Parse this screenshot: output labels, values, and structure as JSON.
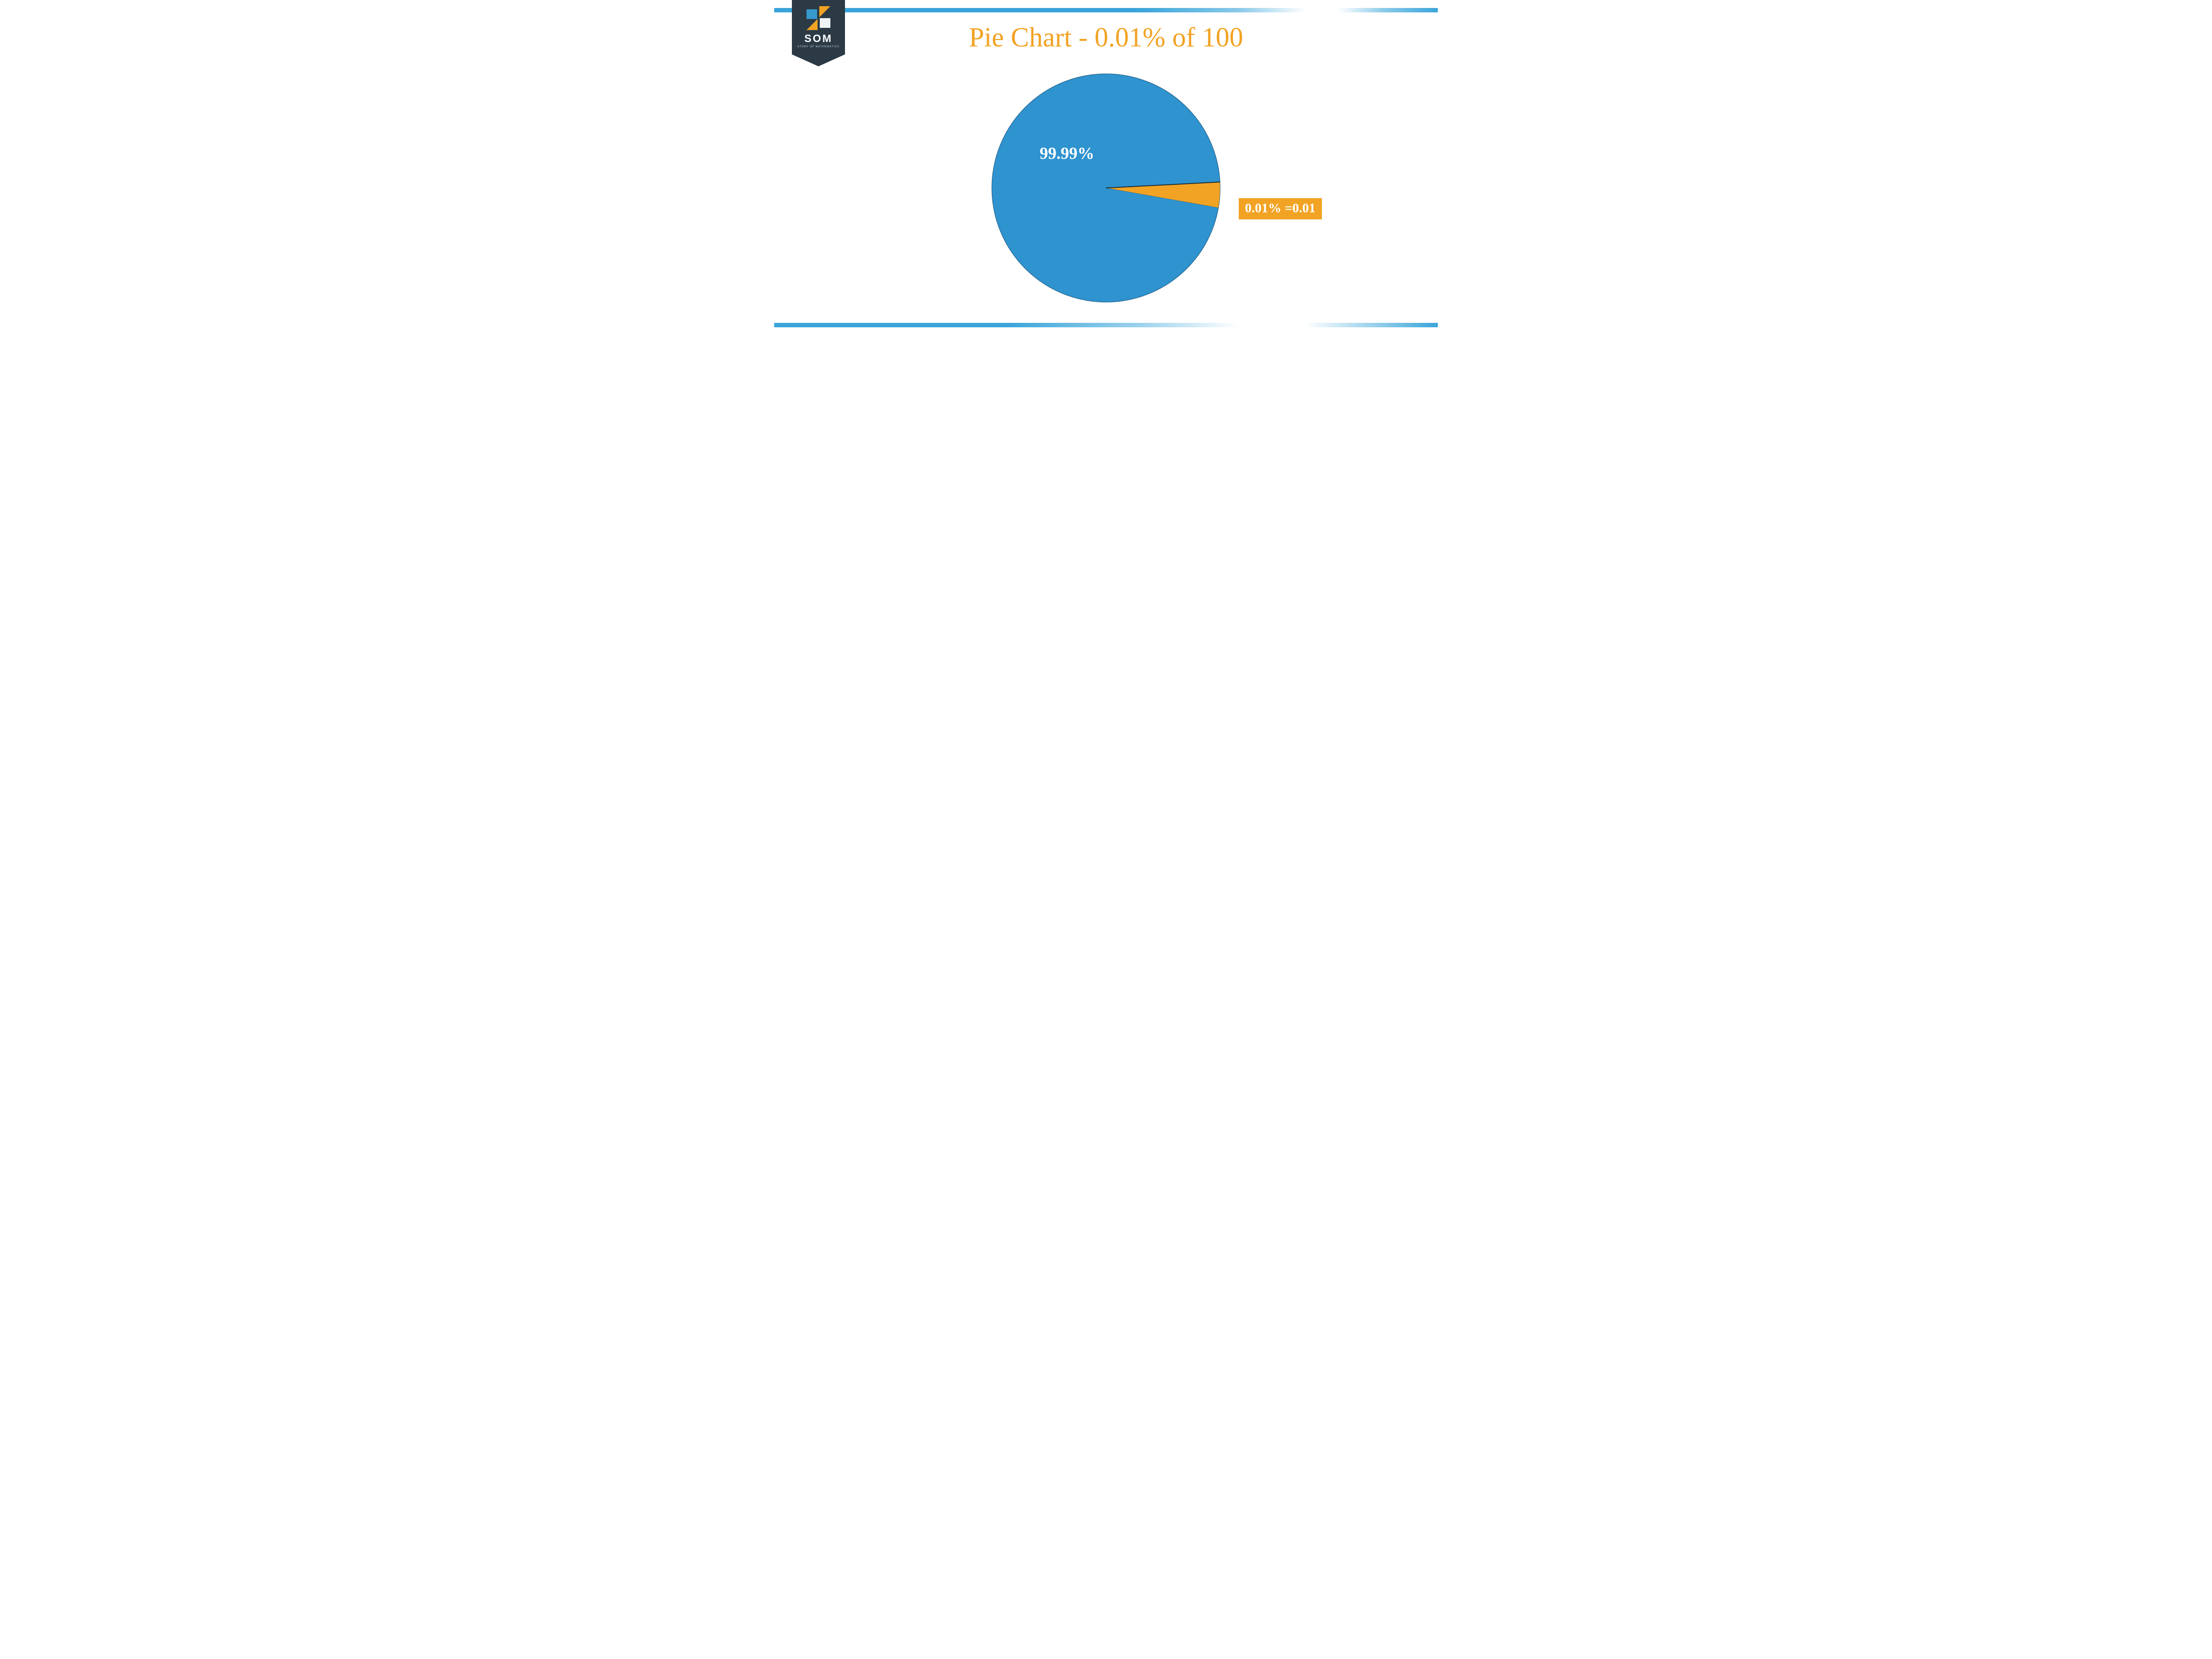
{
  "logo": {
    "name": "SOM",
    "subtitle": "STORY OF MATHEMATICS",
    "badge_color": "#2b3a45",
    "mark_colors": {
      "top_right_triangle": "#f2a324",
      "left_square": "#3799cc",
      "bottom_left_triangle": "#f2a324",
      "right_square": "#eef3f6"
    }
  },
  "bars": {
    "color": "#3aa5da"
  },
  "chart": {
    "type": "pie",
    "title": "Pie Chart - 0.01% of 100",
    "title_color": "#f2a324",
    "title_fontsize": 62,
    "background_color": "#ffffff",
    "radius": 258,
    "stroke_color": "#1d5b82",
    "stroke_width": 1.2,
    "slices": [
      {
        "label": "99.99%",
        "value": 99.99,
        "color": "#2f93cf"
      },
      {
        "label": "0.01% =0.01",
        "value": 0.01,
        "color": "#f2a324"
      }
    ],
    "sliver": {
      "start_angle_deg": 93,
      "end_angle_deg": 100,
      "color": "#f2a324",
      "divider_color": "#1d2b33"
    },
    "main_label": {
      "text": "99.99%",
      "color": "#ffffff",
      "fontsize": 38,
      "fontweight": 700
    },
    "callout": {
      "text": "0.01% =0.01",
      "bg_color": "#f2a324",
      "text_color": "#ffffff",
      "fontsize": 30,
      "fontweight": 700
    }
  }
}
